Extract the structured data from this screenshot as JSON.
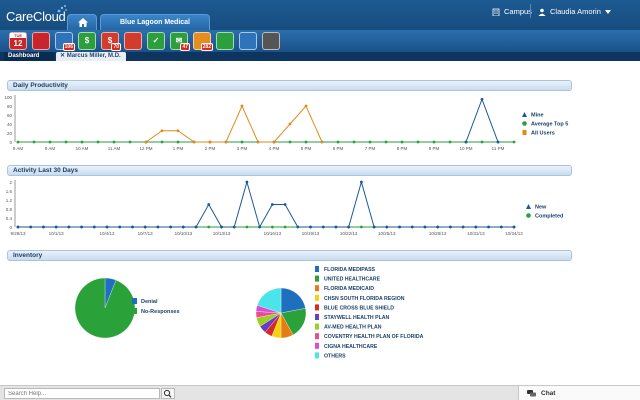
{
  "app": {
    "brand": "CareCloud",
    "practice_tab": "Blue Lagoon Medical",
    "campus": "Campus",
    "user_name": "Claudia Amorin",
    "accent": "#1b5188"
  },
  "toolbar": {
    "icons": [
      {
        "name": "calendar-icon",
        "label": "12",
        "header": "TUE",
        "color": "#c8262b"
      },
      {
        "name": "patients-icon",
        "label": "",
        "badge": "",
        "color": "#c8262b"
      },
      {
        "name": "clinical-icon",
        "label": "",
        "badge": "106",
        "color": "#ffffff"
      },
      {
        "name": "billing-icon",
        "label": "$",
        "badge": "",
        "color": "#2b9e3e"
      },
      {
        "name": "claims-icon",
        "label": "$",
        "badge": "70",
        "color": "#d13c2c"
      },
      {
        "name": "documents-icon",
        "label": "",
        "badge": "",
        "color": "#d13c2c"
      },
      {
        "name": "tasks-icon",
        "label": "✓",
        "badge": "",
        "color": "#2b9e3e"
      },
      {
        "name": "messages-icon",
        "label": "✉",
        "badge": "47",
        "color": "#2b9e3e"
      },
      {
        "name": "contacts-icon",
        "label": "",
        "badge": "282",
        "color": "#e58d1e"
      },
      {
        "name": "reports-icon",
        "label": "",
        "badge": "",
        "color": "#2b9e3e"
      },
      {
        "name": "analytics-icon",
        "label": "",
        "badge": "",
        "color": "#2f74bb"
      },
      {
        "name": "settings-icon",
        "label": "",
        "badge": "",
        "color": "#555555"
      }
    ]
  },
  "subtabs": {
    "dashboard": "Dashboard",
    "doctor": "Marcus Miller, M.D."
  },
  "panels": {
    "productivity_title": "Daily Productivity",
    "activity_title": "Activity Last 30 Days",
    "inventory_title": "Inventory"
  },
  "chart_data": [
    {
      "type": "line",
      "title": "Daily Productivity",
      "categories": [
        "8 AM",
        "",
        "9 AM",
        "",
        "10 AM",
        "",
        "11 AM",
        "",
        "12 PM",
        "",
        "1 PM",
        "",
        "2 PM",
        "",
        "3 PM",
        "",
        "4 PM",
        "",
        "5 PM",
        "",
        "6 PM",
        "",
        "7 PM",
        "",
        "8 PM",
        "",
        "9 PM",
        "",
        "10 PM",
        "",
        "11 PM",
        ""
      ],
      "y_ticks": [
        "100",
        "80",
        "60",
        "40",
        "20",
        "0"
      ],
      "ylim": [
        0,
        100
      ],
      "series": [
        {
          "name": "Mine",
          "color": "#1c5a96",
          "values": [
            0,
            0,
            0,
            0,
            0,
            0,
            0,
            0,
            0,
            0,
            0,
            0,
            0,
            0,
            0,
            0,
            0,
            0,
            0,
            0,
            0,
            0,
            0,
            0,
            0,
            0,
            0,
            0,
            0,
            0,
            0,
            0
          ]
        },
        {
          "name": "Average Top 5",
          "color": "#2b9e3e",
          "values": [
            0,
            0,
            0,
            0,
            0,
            0,
            0,
            0,
            0,
            0,
            0,
            0,
            0,
            0,
            0,
            0,
            0,
            0,
            0,
            0,
            0,
            0,
            0,
            0,
            0,
            0,
            0,
            0,
            0,
            0,
            0,
            0
          ]
        },
        {
          "name": "All Users",
          "color": "#e08a1e",
          "values": [
            0,
            0,
            0,
            0,
            0,
            0,
            0,
            0,
            0,
            0,
            0,
            0,
            0,
            0,
            0,
            0,
            0,
            0,
            0,
            0,
            0,
            0,
            0,
            0,
            0,
            0,
            0,
            0,
            0,
            0,
            0,
            0
          ]
        }
      ],
      "overlays": [
        {
          "series": "All Users",
          "points": [
            [
              8,
              0
            ],
            [
              9,
              25
            ],
            [
              10,
              25
            ],
            [
              11,
              0
            ],
            [
              12,
              0
            ],
            [
              13,
              0
            ],
            [
              14,
              80
            ],
            [
              15,
              0
            ],
            [
              16,
              0
            ],
            [
              17,
              40
            ],
            [
              18,
              80
            ],
            [
              19,
              0
            ]
          ]
        },
        {
          "series": "Mine",
          "points": [
            [
              28,
              0
            ],
            [
              29,
              95
            ],
            [
              30,
              0
            ]
          ]
        }
      ],
      "x_label_positions": [
        0,
        2,
        4,
        6,
        8,
        10,
        12,
        14,
        16,
        18,
        20,
        22,
        24,
        26,
        28,
        30
      ],
      "x_labels": [
        "8 AM",
        "9 AM",
        "10 AM",
        "11 AM",
        "12 PM",
        "1 PM",
        "2 PM",
        "3 PM",
        "4 PM",
        "5 PM",
        "6 PM",
        "7 PM",
        "8 PM",
        "9 PM",
        "10 PM",
        "11 PM"
      ],
      "legend": [
        "Mine",
        "Average Top 5",
        "All Users"
      ],
      "legend_placement": "right"
    },
    {
      "type": "line",
      "title": "Activity Last 30 Days",
      "y_ticks": [
        "2",
        "1.6",
        "1.2",
        "0.8",
        "0.4",
        "0"
      ],
      "ylim": [
        0,
        2
      ],
      "x_labels": [
        "9/28/13",
        "10/1/13",
        "10/4/13",
        "10/7/13",
        "10/10/13",
        "10/13/13",
        "10/16/13",
        "10/19/13",
        "10/22/13",
        "10/25/13",
        "10/28/13",
        "10/31/13",
        "10/34/13"
      ],
      "series": [
        {
          "name": "New",
          "color": "#1c5a96",
          "points": [
            [
              0,
              0
            ],
            [
              1,
              0
            ],
            [
              2,
              0
            ],
            [
              3,
              0
            ],
            [
              4,
              0
            ],
            [
              5,
              0
            ],
            [
              6,
              0
            ],
            [
              7,
              0
            ],
            [
              8,
              0
            ],
            [
              9,
              0
            ],
            [
              10,
              0
            ],
            [
              11,
              0
            ],
            [
              12,
              0
            ],
            [
              13,
              0
            ],
            [
              14,
              0
            ],
            [
              15,
              1
            ],
            [
              16,
              0
            ],
            [
              17,
              0
            ],
            [
              18,
              2
            ],
            [
              19,
              0
            ],
            [
              20,
              1
            ],
            [
              21,
              1
            ],
            [
              22,
              0
            ],
            [
              23,
              0
            ],
            [
              24,
              0
            ],
            [
              25,
              0
            ],
            [
              26,
              0
            ],
            [
              27,
              2
            ],
            [
              28,
              0
            ],
            [
              29,
              0
            ],
            [
              30,
              0
            ],
            [
              31,
              0
            ],
            [
              32,
              0
            ],
            [
              33,
              0
            ],
            [
              34,
              0
            ],
            [
              35,
              0
            ],
            [
              36,
              0
            ],
            [
              37,
              0
            ],
            [
              38,
              0
            ],
            [
              39,
              0
            ]
          ]
        },
        {
          "name": "Completed",
          "color": "#2b9e3e",
          "points": [
            [
              0,
              0
            ],
            [
              1,
              0
            ],
            [
              2,
              0
            ],
            [
              3,
              0
            ],
            [
              4,
              0
            ],
            [
              5,
              0
            ],
            [
              6,
              0
            ],
            [
              7,
              0
            ],
            [
              8,
              0
            ],
            [
              9,
              0
            ],
            [
              10,
              0
            ],
            [
              11,
              0
            ],
            [
              12,
              0
            ],
            [
              13,
              0
            ],
            [
              14,
              0
            ],
            [
              15,
              0
            ],
            [
              16,
              0
            ],
            [
              17,
              0
            ],
            [
              18,
              0
            ],
            [
              19,
              0
            ],
            [
              20,
              0
            ],
            [
              21,
              0
            ],
            [
              22,
              0
            ],
            [
              23,
              0
            ],
            [
              24,
              0
            ],
            [
              25,
              0
            ],
            [
              26,
              0
            ],
            [
              27,
              0
            ],
            [
              28,
              0
            ],
            [
              29,
              0
            ],
            [
              30,
              0
            ],
            [
              31,
              0
            ],
            [
              32,
              0
            ],
            [
              33,
              0
            ],
            [
              34,
              0
            ],
            [
              35,
              0
            ],
            [
              36,
              0
            ],
            [
              37,
              0
            ],
            [
              38,
              0
            ],
            [
              39,
              0
            ]
          ]
        }
      ],
      "legend": [
        "New",
        "Completed"
      ],
      "legend_placement": "right"
    },
    {
      "type": "pie",
      "title": "",
      "slices": [
        {
          "label": "Denial",
          "value": 6,
          "color": "#1f6fbf"
        },
        {
          "label": "No-Responses",
          "value": 94,
          "color": "#2ba13a"
        }
      ],
      "legend_placement": "right"
    },
    {
      "type": "pie",
      "title": "",
      "slices": [
        {
          "label": "FLORIDA MEDIPASS",
          "value": 22,
          "color": "#1f6fbf"
        },
        {
          "label": "UNITED HEALTHCARE",
          "value": 20,
          "color": "#2ba13a"
        },
        {
          "label": "FLORIDA MEDICAID",
          "value": 8,
          "color": "#e47d15"
        },
        {
          "label": "CHSN SOUTH FLORIDA REGION",
          "value": 6,
          "color": "#f5d20f"
        },
        {
          "label": "BLUE CROSS BLUE SHIELD",
          "value": 5,
          "color": "#d62b24"
        },
        {
          "label": "STAYWELL HEALTH PLAN",
          "value": 5,
          "color": "#6a3dbf"
        },
        {
          "label": "AV-MED HEALTH PLAN",
          "value": 6,
          "color": "#9ad023"
        },
        {
          "label": "COVENTRY HEALTH PLAN OF FLORIDA",
          "value": 4,
          "color": "#e94b95"
        },
        {
          "label": "CIGNA HEALTHCARE",
          "value": 4,
          "color": "#d64fd1"
        },
        {
          "label": "OTHERS",
          "value": 20,
          "color": "#4be4ea"
        }
      ],
      "legend_placement": "right"
    }
  ],
  "bottom": {
    "search_placeholder": "Search Help...",
    "chat_label": "Chat"
  }
}
